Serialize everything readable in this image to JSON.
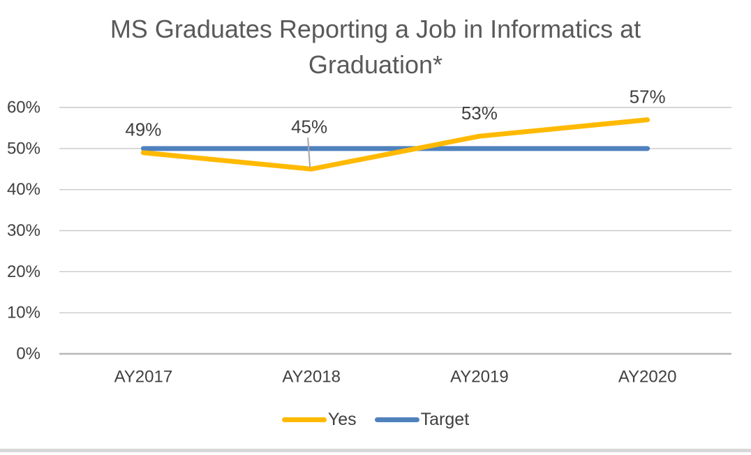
{
  "window": {
    "background": "#ffffff",
    "bottom_border_color": "#d8d8d8"
  },
  "chart_data": {
    "type": "line",
    "title": "MS Graduates Reporting a Job in Informatics at Graduation*",
    "title_lines": [
      "MS Graduates Reporting a Job in Informatics at",
      "Graduation*"
    ],
    "categories": [
      "AY2017",
      "AY2018",
      "AY2019",
      "AY2020"
    ],
    "series": [
      {
        "name": "Target",
        "values": [
          50,
          50,
          50,
          50
        ],
        "color": "#4F81BD",
        "data_labels": null
      },
      {
        "name": "Yes",
        "values": [
          49,
          45,
          53,
          57
        ],
        "color": "#FFB900",
        "data_labels": [
          "49%",
          "45%",
          "53%",
          "57%"
        ]
      }
    ],
    "legend_order": [
      "Yes",
      "Target"
    ],
    "ylim": [
      0,
      60
    ],
    "ytick_step": 10,
    "ytick_labels": [
      "0%",
      "10%",
      "20%",
      "30%",
      "40%",
      "50%",
      "60%"
    ],
    "grid": "horizontal",
    "legend_position": "bottom",
    "label_leader_line_on": "AY2018"
  },
  "style_colors": {
    "grid": "#C9C9C9",
    "axis": "#B7B7B7",
    "leader_line": "#A6A6A6",
    "tick_text": "#404040",
    "data_label_text": "#404040",
    "title_text": "#595959"
  }
}
